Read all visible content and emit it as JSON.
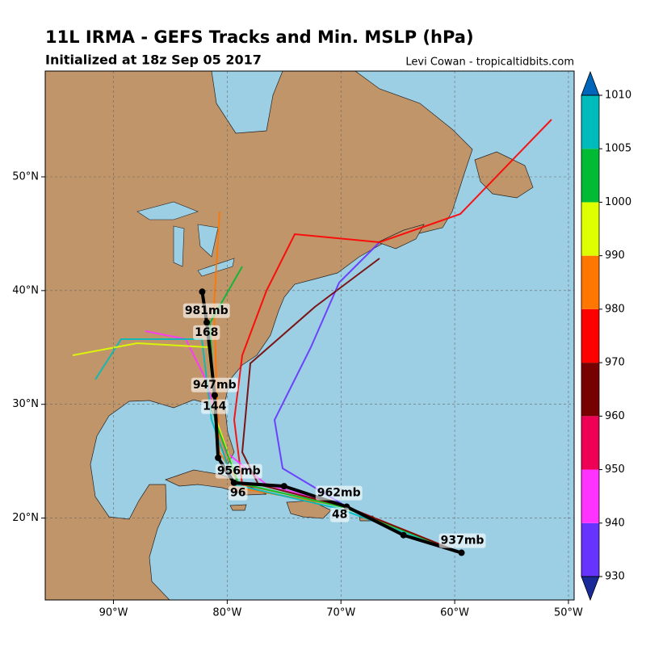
{
  "title": "11L IRMA - GEFS Tracks and Min. MSLP (hPa)",
  "subtitle": "Initialized at 18z Sep 05 2017",
  "credit": "Levi Cowan - tropicaltidbits.com",
  "map": {
    "xlim": [
      -96,
      -49.5
    ],
    "ylim": [
      12.8,
      59.3
    ],
    "grid": true,
    "xticks": [
      {
        "value": -90,
        "label": "90°W"
      },
      {
        "value": -80,
        "label": "80°W"
      },
      {
        "value": -70,
        "label": "70°W"
      },
      {
        "value": -60,
        "label": "60°W"
      },
      {
        "value": -50,
        "label": "50°W"
      }
    ],
    "yticks": [
      {
        "value": 20,
        "label": "20°N"
      },
      {
        "value": 30,
        "label": "30°N"
      },
      {
        "value": 40,
        "label": "40°N"
      },
      {
        "value": 50,
        "label": "50°N"
      }
    ],
    "mean_track": {
      "color": "#000000",
      "lon": [
        -59.4,
        -64.5,
        -69.5,
        -75.0,
        -79.4,
        -80.8,
        -81.1,
        -81.8,
        -82.2
      ],
      "lat": [
        16.95,
        18.5,
        21.0,
        22.8,
        23.1,
        25.3,
        30.8,
        37.2,
        39.9
      ]
    },
    "annotations": [
      {
        "text": "937mb",
        "lon": -59.33,
        "lat": 18.01
      },
      {
        "text": "48",
        "lon": -70.11,
        "lat": 20.28
      },
      {
        "text": "962mb",
        "lon": -70.18,
        "lat": 22.2
      },
      {
        "text": "96",
        "lon": -79.05,
        "lat": 22.2
      },
      {
        "text": "956mb",
        "lon": -78.98,
        "lat": 24.11
      },
      {
        "text": "144",
        "lon": -81.11,
        "lat": 29.79
      },
      {
        "text": "947mb",
        "lon": -81.11,
        "lat": 31.7
      },
      {
        "text": "168",
        "lon": -81.82,
        "lat": 36.31
      },
      {
        "text": "981mb",
        "lon": -81.82,
        "lat": 38.23
      }
    ]
  },
  "colorbar": {
    "ticks": [
      930,
      940,
      950,
      960,
      970,
      980,
      990,
      1000,
      1005,
      1010
    ],
    "colors": [
      "#6633ff",
      "#ff33ff",
      "#ee0055",
      "#770000",
      "#ff0000",
      "#ff7700",
      "#ddff00",
      "#00bb33",
      "#00bbbb"
    ],
    "extend_colors": [
      "#1a2a99",
      "#0066bb"
    ]
  }
}
